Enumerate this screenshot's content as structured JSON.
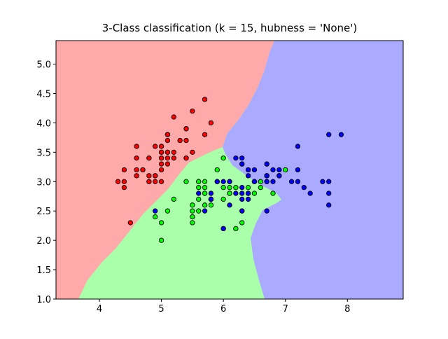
{
  "chart_data": {
    "type": "scatter",
    "title": "3-Class classification (k = 15, hubness = 'None')",
    "xlim": [
      3.3,
      8.9
    ],
    "ylim": [
      1.0,
      5.4
    ],
    "xticks": [
      4,
      5,
      6,
      7,
      8
    ],
    "yticks": [
      {
        "value": 1.0,
        "label": "1.0"
      },
      {
        "value": 1.5,
        "label": "1.5"
      },
      {
        "value": 2.0,
        "label": "2.0"
      },
      {
        "value": 2.5,
        "label": "2.5"
      },
      {
        "value": 3.0,
        "label": "3.0"
      },
      {
        "value": 3.5,
        "label": "3.5"
      },
      {
        "value": 4.0,
        "label": "4.0"
      },
      {
        "value": 4.5,
        "label": "4.5"
      },
      {
        "value": 5.0,
        "label": "5.0"
      }
    ],
    "region_colors": [
      "#FFAAAA",
      "#AAFFAA",
      "#AAAAFF"
    ],
    "series": [
      {
        "color": "#FF0000",
        "x": [
          5.1,
          4.9,
          4.7,
          4.6,
          5.0,
          5.4,
          4.6,
          5.0,
          4.4,
          4.9,
          5.4,
          4.8,
          4.8,
          4.3,
          5.8,
          5.7,
          5.4,
          5.1,
          5.7,
          5.1,
          5.4,
          5.1,
          4.6,
          5.1,
          4.8,
          5.0,
          5.0,
          5.2,
          5.2,
          4.7,
          4.8,
          5.4,
          5.2,
          5.5,
          4.9,
          5.0,
          5.5,
          4.9,
          4.4,
          5.1,
          5.0,
          4.5,
          4.4,
          5.0,
          5.1,
          4.8,
          5.1,
          4.6,
          5.3,
          5.0
        ],
        "y": [
          3.5,
          3.0,
          3.2,
          3.1,
          3.6,
          3.9,
          3.4,
          3.4,
          2.9,
          3.1,
          3.7,
          3.4,
          3.0,
          3.0,
          4.0,
          4.4,
          3.9,
          3.5,
          3.8,
          3.8,
          3.4,
          3.7,
          3.6,
          3.3,
          3.4,
          3.0,
          3.4,
          3.5,
          3.4,
          3.2,
          3.1,
          3.4,
          4.1,
          4.2,
          3.1,
          3.2,
          3.5,
          3.6,
          3.0,
          3.4,
          3.5,
          2.3,
          3.2,
          3.5,
          3.8,
          3.0,
          3.8,
          3.2,
          3.7,
          3.3
        ]
      },
      {
        "color": "#00FF00",
        "x": [
          7.0,
          6.4,
          6.9,
          5.5,
          6.5,
          5.7,
          6.3,
          4.9,
          6.6,
          5.2,
          5.0,
          5.9,
          6.0,
          6.1,
          5.6,
          6.7,
          5.6,
          5.8,
          6.2,
          5.6,
          5.9,
          6.1,
          6.3,
          6.1,
          6.4,
          6.6,
          6.8,
          6.7,
          6.0,
          5.7,
          5.5,
          5.5,
          5.8,
          6.0,
          5.4,
          6.0,
          6.7,
          6.3,
          5.6,
          5.5,
          5.5,
          6.1,
          5.8,
          5.0,
          5.6,
          5.7,
          5.7,
          6.2,
          5.1,
          5.7
        ],
        "y": [
          3.2,
          3.2,
          3.1,
          2.3,
          2.8,
          2.8,
          3.3,
          2.4,
          2.9,
          2.7,
          2.0,
          3.0,
          2.2,
          2.9,
          2.9,
          3.1,
          3.0,
          2.7,
          2.2,
          2.5,
          3.2,
          2.8,
          2.5,
          2.8,
          2.9,
          3.0,
          2.8,
          3.0,
          2.9,
          2.6,
          2.4,
          2.4,
          2.7,
          2.7,
          3.0,
          3.4,
          3.1,
          2.3,
          3.0,
          2.5,
          2.6,
          3.0,
          2.6,
          2.3,
          2.7,
          3.0,
          2.9,
          2.9,
          2.5,
          2.8
        ]
      },
      {
        "color": "#0000FF",
        "x": [
          6.3,
          5.8,
          7.1,
          6.3,
          6.5,
          7.6,
          4.9,
          7.3,
          6.7,
          7.2,
          6.5,
          6.4,
          6.8,
          5.7,
          5.8,
          6.4,
          6.5,
          7.7,
          7.7,
          6.0,
          6.9,
          5.6,
          7.7,
          6.3,
          6.7,
          7.2,
          6.2,
          6.1,
          6.4,
          7.2,
          7.4,
          7.9,
          6.4,
          6.3,
          6.1,
          7.7,
          6.3,
          6.4,
          6.0,
          6.9,
          6.7,
          6.9,
          5.8,
          6.8,
          6.7,
          6.7,
          6.3,
          6.5,
          6.2,
          5.9
        ],
        "y": [
          3.3,
          2.7,
          3.0,
          2.9,
          3.0,
          3.0,
          2.5,
          2.9,
          2.5,
          3.6,
          3.2,
          2.7,
          3.0,
          2.5,
          2.8,
          3.2,
          3.0,
          3.8,
          2.6,
          2.2,
          3.2,
          2.8,
          2.8,
          2.7,
          3.3,
          3.2,
          2.8,
          3.0,
          2.8,
          3.0,
          2.8,
          3.8,
          2.8,
          2.8,
          2.6,
          3.0,
          3.4,
          3.1,
          3.0,
          3.1,
          3.1,
          3.1,
          2.7,
          3.2,
          3.3,
          3.0,
          2.5,
          3.0,
          3.4,
          3.0
        ]
      }
    ]
  }
}
